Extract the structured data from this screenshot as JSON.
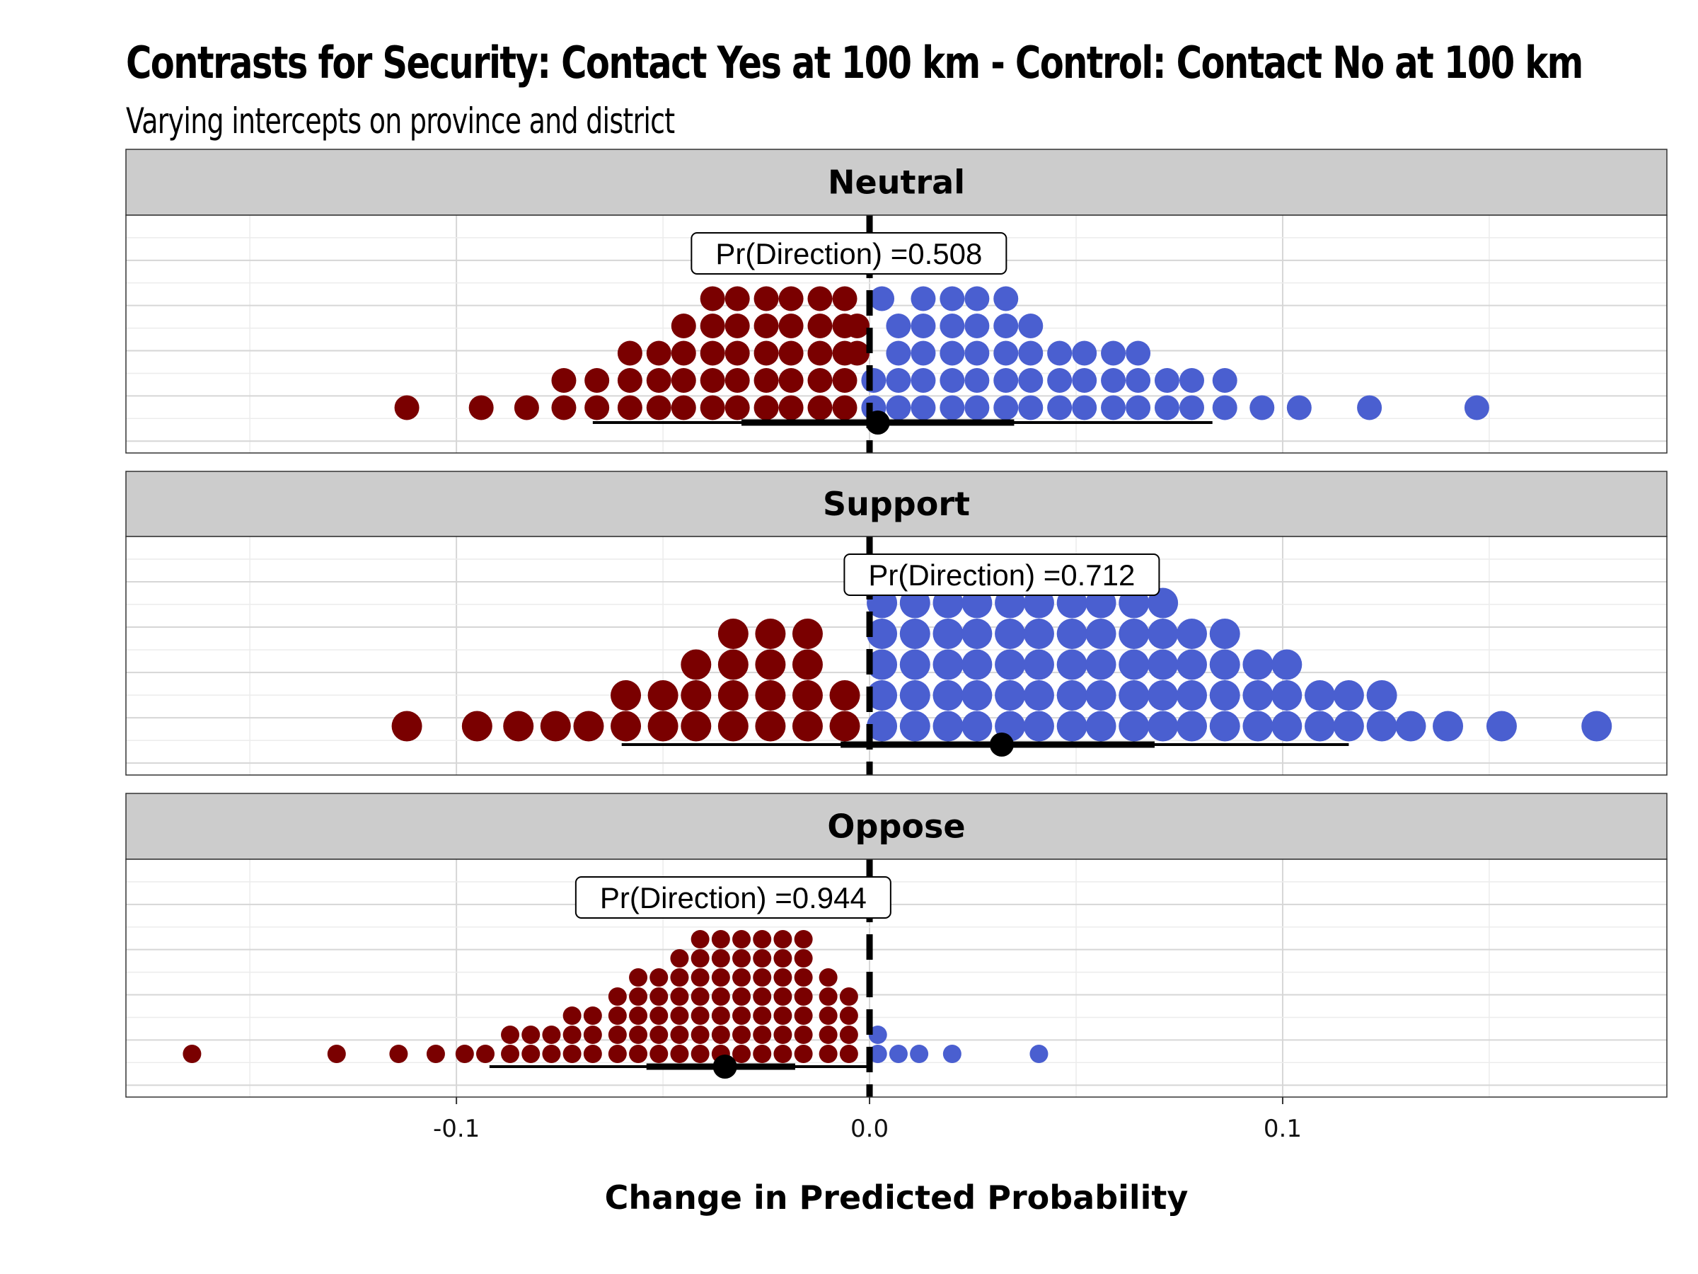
{
  "chart_data": {
    "type": "dotplot",
    "title": "Contrasts for Security: Contact Yes at 100 km - Control: Contact No at 100 km",
    "subtitle": "Varying intercepts on province and district",
    "xlabel": "Change in Predicted Probability",
    "xlim": [
      -0.18,
      0.193
    ],
    "xticks": [
      -0.1,
      0.0,
      0.1
    ],
    "xtick_labels": [
      "-0.1",
      "0.0",
      "0.1"
    ],
    "grid": true,
    "reference_line": 0.0,
    "colors": {
      "negative": "#7a0000",
      "positive": "#4a5fd0"
    },
    "panels": [
      {
        "name": "Neutral",
        "annotation": "Pr(Direction) =0.508",
        "annotation_x": -0.005,
        "point_estimate": 0.002,
        "interval_inner": [
          -0.031,
          0.035
        ],
        "interval_outer": [
          -0.067,
          0.083
        ],
        "dot_rows": [
          [
            -0.112,
            -0.094,
            -0.083,
            -0.074,
            -0.066,
            -0.058,
            -0.051,
            -0.045,
            -0.038,
            -0.032,
            -0.025,
            -0.019,
            -0.012,
            -0.006,
            0.001,
            0.007,
            0.013,
            0.02,
            0.026,
            0.033,
            0.039,
            0.046,
            0.052,
            0.059,
            0.065,
            0.072,
            0.078,
            0.086,
            0.095,
            0.104,
            0.121,
            0.147
          ],
          [
            -0.074,
            -0.066,
            -0.058,
            -0.051,
            -0.045,
            -0.038,
            -0.032,
            -0.025,
            -0.019,
            -0.012,
            -0.006,
            0.001,
            0.007,
            0.013,
            0.02,
            0.026,
            0.033,
            0.039,
            0.046,
            0.052,
            0.059,
            0.065,
            0.072,
            0.078,
            0.086
          ],
          [
            -0.058,
            -0.051,
            -0.045,
            -0.038,
            -0.032,
            -0.025,
            -0.019,
            -0.012,
            -0.006,
            -0.003,
            0.007,
            0.013,
            0.02,
            0.026,
            0.033,
            0.039,
            0.046,
            0.052,
            0.059,
            0.065
          ],
          [
            -0.045,
            -0.038,
            -0.032,
            -0.025,
            -0.019,
            -0.012,
            -0.006,
            -0.003,
            0.007,
            0.013,
            0.02,
            0.026,
            0.033,
            0.039
          ],
          [
            -0.038,
            -0.032,
            -0.025,
            -0.019,
            -0.012,
            -0.006,
            0.003,
            0.013,
            0.02,
            0.026,
            0.033
          ]
        ]
      },
      {
        "name": "Support",
        "annotation": "Pr(Direction) =0.712",
        "annotation_x": 0.032,
        "point_estimate": 0.032,
        "interval_inner": [
          -0.007,
          0.069
        ],
        "interval_outer": [
          -0.06,
          0.116
        ],
        "dot_rows": [
          [
            -0.112,
            -0.095,
            -0.085,
            -0.076,
            -0.068,
            -0.059,
            -0.05,
            -0.042,
            -0.033,
            -0.024,
            -0.015,
            -0.006,
            0.003,
            0.011,
            0.019,
            0.026,
            0.034,
            0.041,
            0.049,
            0.056,
            0.064,
            0.071,
            0.078,
            0.086,
            0.094,
            0.101,
            0.109,
            0.116,
            0.124,
            0.131,
            0.14,
            0.153,
            0.176
          ],
          [
            -0.059,
            -0.05,
            -0.042,
            -0.033,
            -0.024,
            -0.015,
            -0.006,
            0.003,
            0.011,
            0.019,
            0.026,
            0.034,
            0.041,
            0.049,
            0.056,
            0.064,
            0.071,
            0.078,
            0.086,
            0.094,
            0.101,
            0.109,
            0.116,
            0.124
          ],
          [
            -0.042,
            -0.033,
            -0.024,
            -0.015,
            0.003,
            0.011,
            0.019,
            0.026,
            0.034,
            0.041,
            0.049,
            0.056,
            0.064,
            0.071,
            0.078,
            0.086,
            0.094,
            0.101
          ],
          [
            -0.033,
            -0.024,
            -0.015,
            0.003,
            0.011,
            0.019,
            0.026,
            0.034,
            0.041,
            0.049,
            0.056,
            0.064,
            0.071,
            0.078,
            0.086
          ],
          [
            0.003,
            0.011,
            0.019,
            0.026,
            0.034,
            0.041,
            0.049,
            0.056,
            0.064,
            0.071
          ]
        ]
      },
      {
        "name": "Oppose",
        "annotation": "Pr(Direction) =0.944",
        "annotation_x": -0.033,
        "point_estimate": -0.035,
        "interval_inner": [
          -0.054,
          -0.018
        ],
        "interval_outer": [
          -0.092,
          0.0
        ],
        "dot_rows": [
          [
            -0.164,
            -0.129,
            -0.114,
            -0.105,
            -0.098,
            -0.093,
            -0.087,
            -0.082,
            -0.077,
            -0.072,
            -0.067,
            -0.061,
            -0.056,
            -0.051,
            -0.046,
            -0.041,
            -0.036,
            -0.031,
            -0.026,
            -0.021,
            -0.016,
            -0.01,
            -0.005,
            0.002,
            0.007,
            0.012,
            0.02,
            0.041
          ],
          [
            -0.087,
            -0.082,
            -0.077,
            -0.072,
            -0.067,
            -0.061,
            -0.056,
            -0.051,
            -0.046,
            -0.041,
            -0.036,
            -0.031,
            -0.026,
            -0.021,
            -0.016,
            -0.01,
            -0.005,
            0.002
          ],
          [
            -0.072,
            -0.067,
            -0.061,
            -0.056,
            -0.051,
            -0.046,
            -0.041,
            -0.036,
            -0.031,
            -0.026,
            -0.021,
            -0.016,
            -0.01,
            -0.005
          ],
          [
            -0.061,
            -0.056,
            -0.051,
            -0.046,
            -0.041,
            -0.036,
            -0.031,
            -0.026,
            -0.021,
            -0.016,
            -0.01,
            -0.005
          ],
          [
            -0.056,
            -0.051,
            -0.046,
            -0.041,
            -0.036,
            -0.031,
            -0.026,
            -0.021,
            -0.016,
            -0.01
          ],
          [
            -0.046,
            -0.041,
            -0.036,
            -0.031,
            -0.026,
            -0.021,
            -0.016
          ],
          [
            -0.041,
            -0.036,
            -0.031,
            -0.026,
            -0.021,
            -0.016
          ]
        ]
      }
    ]
  }
}
